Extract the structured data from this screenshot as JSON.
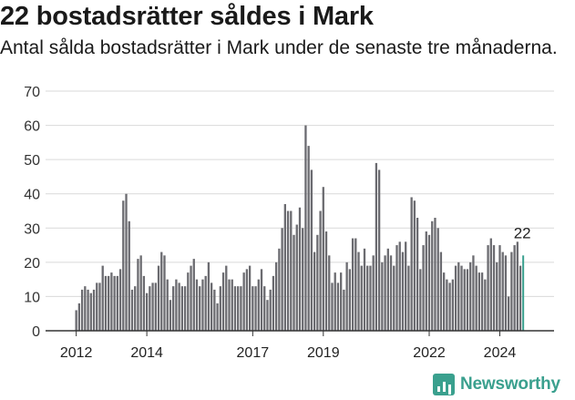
{
  "title": "22 bostadsrätter såldes i Mark",
  "subtitle": "Antal sålda bostadsrätter i Mark under de senaste tre månaderna.",
  "logo_text": "Newsworthy",
  "colors": {
    "bar": "#6b6b70",
    "highlight": "#3aa08e",
    "grid": "#d9d9d9",
    "axis": "#333333"
  },
  "chart_data": {
    "type": "bar",
    "title": "22 bostadsrätter såldes i Mark",
    "ylim": [
      0,
      70
    ],
    "yticks": [
      0,
      10,
      20,
      30,
      40,
      50,
      60,
      70
    ],
    "xticks": [
      "2012",
      "2014",
      "2017",
      "2019",
      "2022",
      "2024"
    ],
    "grid": true,
    "last_value_label": "22",
    "series_start": "2012-01",
    "values": [
      6,
      8,
      12,
      13,
      12,
      11,
      12,
      14,
      14,
      19,
      16,
      16,
      17,
      16,
      16,
      18,
      38,
      40,
      32,
      12,
      13,
      21,
      22,
      16,
      11,
      13,
      14,
      14,
      19,
      23,
      22,
      15,
      9,
      13,
      15,
      14,
      13,
      13,
      17,
      19,
      21,
      15,
      13,
      15,
      16,
      20,
      14,
      12,
      8,
      13,
      17,
      19,
      15,
      15,
      13,
      13,
      13,
      17,
      18,
      19,
      13,
      13,
      15,
      18,
      13,
      9,
      12,
      16,
      20,
      24,
      30,
      37,
      35,
      35,
      28,
      31,
      36,
      30,
      60,
      54,
      47,
      23,
      28,
      35,
      42,
      29,
      22,
      14,
      17,
      14,
      17,
      12,
      20,
      18,
      27,
      27,
      23,
      19,
      24,
      19,
      19,
      22,
      49,
      47,
      20,
      22,
      24,
      22,
      19,
      25,
      26,
      23,
      26,
      19,
      39,
      38,
      33,
      18,
      25,
      29,
      28,
      32,
      33,
      30,
      23,
      17,
      15,
      14,
      15,
      19,
      20,
      19,
      18,
      18,
      20,
      22,
      19,
      17,
      17,
      15,
      25,
      27,
      25,
      20,
      25,
      23,
      22,
      10,
      23,
      25,
      26,
      19,
      22
    ]
  }
}
